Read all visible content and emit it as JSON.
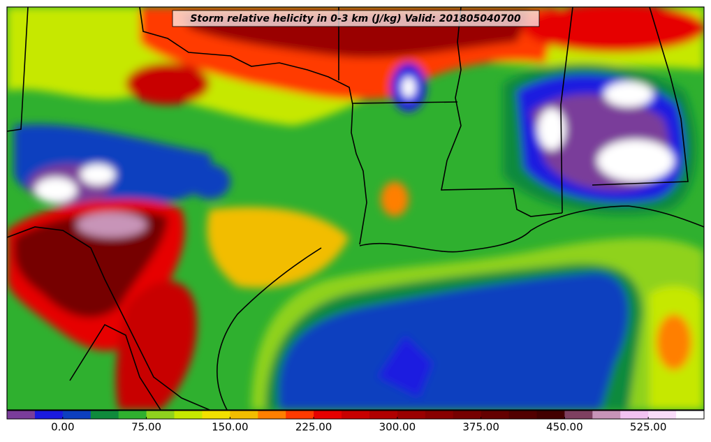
{
  "title": "Storm relative helicity in 0-3 km (J/kg) Valid: 201805040700",
  "colorbar": {
    "range": [
      -50,
      575
    ],
    "colors": [
      "#7a3d9a",
      "#1a1ae0",
      "#0d3fbf",
      "#0f8a3c",
      "#2fb02f",
      "#8fd21e",
      "#c6e800",
      "#f2e000",
      "#f2bd00",
      "#ff7f00",
      "#ff3a00",
      "#e60000",
      "#c80000",
      "#b00000",
      "#9a0000",
      "#880000",
      "#760000",
      "#640000",
      "#520000",
      "#420000",
      "#7e4060",
      "#c894b8",
      "#f2c2f2",
      "#f9dcf9",
      "#ffffff"
    ],
    "ticks": [
      {
        "value": 0,
        "label": "0.00"
      },
      {
        "value": 75,
        "label": "75.00"
      },
      {
        "value": 150,
        "label": "150.00"
      },
      {
        "value": 225,
        "label": "225.00"
      },
      {
        "value": 300,
        "label": "300.00"
      },
      {
        "value": 375,
        "label": "375.00"
      },
      {
        "value": 450,
        "label": "450.00"
      },
      {
        "value": 525,
        "label": "525.00"
      }
    ]
  }
}
